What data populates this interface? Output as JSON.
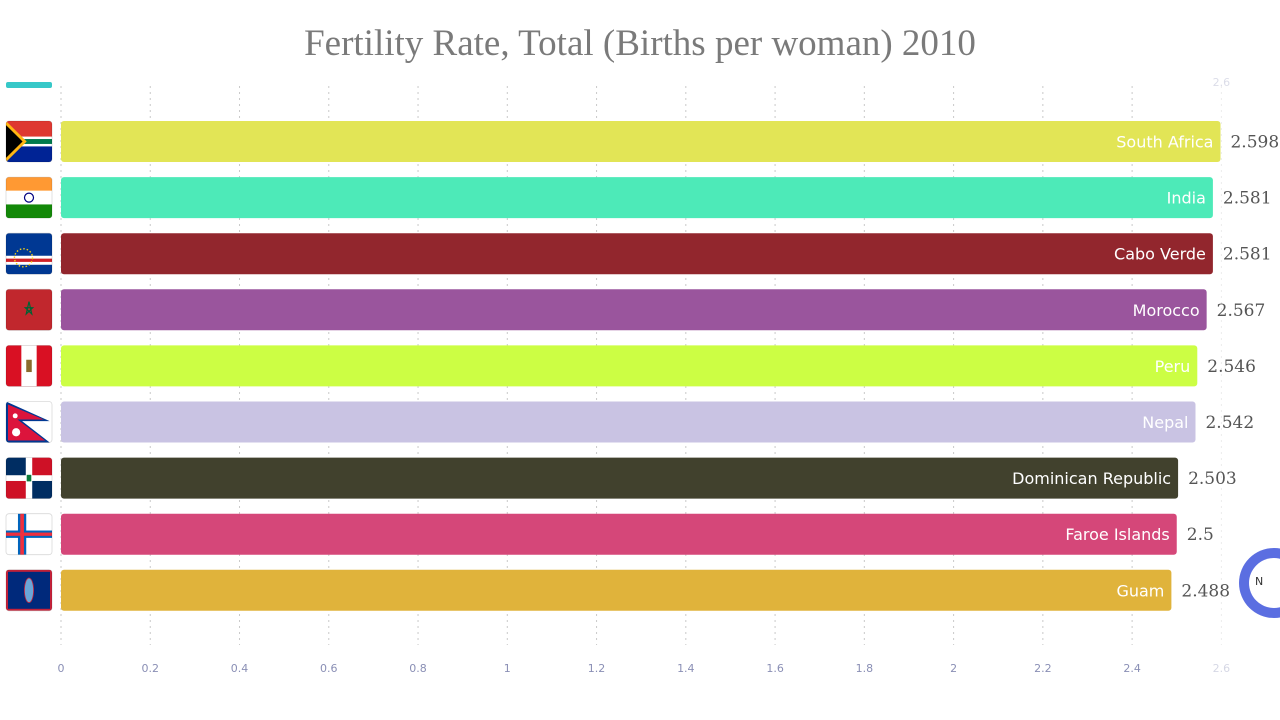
{
  "chart_data": {
    "type": "bar",
    "orientation": "horizontal",
    "title": "Fertility Rate, Total (Births per woman) 2010",
    "xlim": [
      0,
      2.6
    ],
    "ticks": [
      "0",
      "0.2",
      "0.4",
      "0.6",
      "0.8",
      "1",
      "1.2",
      "1.4",
      "1.6",
      "1.8",
      "2",
      "2.2",
      "2.4",
      "2.6"
    ],
    "grid": true,
    "categories": [
      "South Africa",
      "India",
      "Cabo Verde",
      "Morocco",
      "Peru",
      "Nepal",
      "Dominican Republic",
      "Faroe Islands",
      "Guam"
    ],
    "values": [
      2.598,
      2.581,
      2.581,
      2.567,
      2.546,
      2.542,
      2.503,
      2.5,
      2.488
    ],
    "value_labels": [
      "2.598",
      "2.581",
      "2.581",
      "2.567",
      "2.546",
      "2.542",
      "2.503",
      "2.5",
      "2.488"
    ],
    "colors": [
      "#e2e556",
      "#4deab8",
      "#92262d",
      "#9a559d",
      "#ccfe44",
      "#c9c3e3",
      "#41412d",
      "#d54779",
      "#e0b33b"
    ],
    "flags": [
      "flag-south-africa-icon",
      "flag-india-icon",
      "flag-cabo-verde-icon",
      "flag-morocco-icon",
      "flag-peru-icon",
      "flag-nepal-icon",
      "flag-dominican-republic-icon",
      "flag-faroe-islands-icon",
      "flag-guam-icon"
    ]
  },
  "logo": {
    "letter": "N",
    "color": "#5b6ee1"
  }
}
